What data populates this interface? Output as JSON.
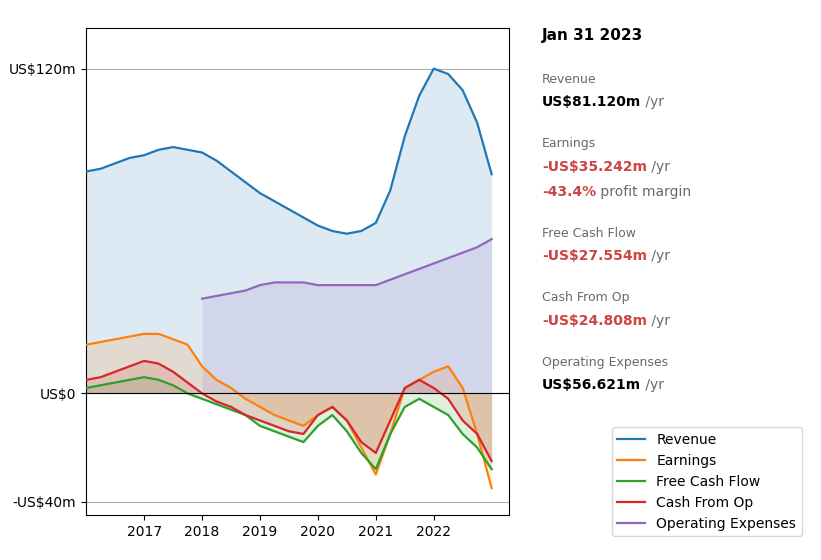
{
  "chart_data": {
    "type": "area",
    "x": [
      2016.0,
      2016.25,
      2016.5,
      2016.75,
      2017.0,
      2017.25,
      2017.5,
      2017.75,
      2018.0,
      2018.25,
      2018.5,
      2018.75,
      2019.0,
      2019.25,
      2019.5,
      2019.75,
      2020.0,
      2020.25,
      2020.5,
      2020.75,
      2021.0,
      2021.25,
      2021.5,
      2021.75,
      2022.0,
      2022.25,
      2022.5,
      2022.75,
      2023.0
    ],
    "xlim": [
      2016.0,
      2023.3
    ],
    "xticks": [
      2017,
      2018,
      2019,
      2020,
      2021,
      2022
    ],
    "ylim": [
      -45,
      135
    ],
    "yticks": [
      {
        "value": 120,
        "label": "US$120m"
      },
      {
        "value": 0,
        "label": "US$0"
      },
      {
        "value": -40,
        "label": "-US$40m"
      }
    ],
    "grid": true,
    "legend": "lower right",
    "series": [
      {
        "name": "Revenue",
        "values": [
          82,
          83,
          85,
          87,
          88,
          90,
          91,
          90,
          89,
          86,
          82,
          78,
          74,
          71,
          68,
          65,
          62,
          60,
          59,
          60,
          63,
          75,
          95,
          110,
          120,
          118,
          112,
          100,
          81
        ]
      },
      {
        "name": "Earnings",
        "values": [
          18,
          19,
          20,
          21,
          22,
          22,
          20,
          18,
          10,
          5,
          2,
          -2,
          -5,
          -8,
          -10,
          -12,
          -8,
          -5,
          -10,
          -20,
          -30,
          -15,
          2,
          5,
          8,
          10,
          2,
          -15,
          -35
        ]
      },
      {
        "name": "Free Cash Flow",
        "values": [
          2,
          3,
          4,
          5,
          6,
          5,
          3,
          0,
          -2,
          -4,
          -6,
          -8,
          -12,
          -14,
          -16,
          -18,
          -12,
          -8,
          -14,
          -22,
          -28,
          -15,
          -5,
          -2,
          -5,
          -8,
          -15,
          -20,
          -28
        ]
      },
      {
        "name": "Cash From Op",
        "values": [
          5,
          6,
          8,
          10,
          12,
          11,
          8,
          4,
          0,
          -3,
          -5,
          -8,
          -10,
          -12,
          -14,
          -15,
          -8,
          -5,
          -10,
          -18,
          -22,
          -10,
          2,
          5,
          2,
          -2,
          -10,
          -15,
          -25
        ]
      },
      {
        "name": "Operating Expenses",
        "values": [
          null,
          null,
          null,
          null,
          null,
          null,
          null,
          null,
          35,
          36,
          37,
          38,
          40,
          41,
          41,
          41,
          40,
          40,
          40,
          40,
          40,
          42,
          44,
          46,
          48,
          50,
          52,
          54,
          57
        ]
      }
    ],
    "annotation": {
      "title": "Jan 31 2023",
      "rows": [
        {
          "label": "Revenue",
          "value": "US$81.120m",
          "unit": " /yr"
        },
        {
          "label": "Earnings",
          "value": "-US$35.242m",
          "unit": " /yr",
          "color": "#cc4444",
          "sub_value": "-43.4%",
          "sub_label": " profit margin"
        },
        {
          "label": "Free Cash Flow",
          "value": "-US$27.554m",
          "unit": " /yr",
          "color": "#cc4444"
        },
        {
          "label": "Cash From Op",
          "value": "-US$24.808m",
          "unit": " /yr",
          "color": "#cc4444"
        },
        {
          "label": "Operating Expenses",
          "value": "US$56.621m",
          "unit": " /yr"
        }
      ]
    }
  }
}
